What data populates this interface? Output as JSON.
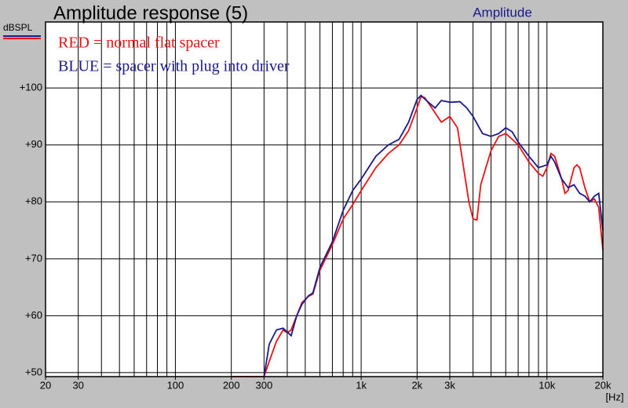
{
  "chart_data": {
    "type": "line",
    "title": "Amplitude response (5)",
    "subtitle": "Amplitude",
    "y_label": "dBSPL",
    "x_label": "[Hz]",
    "log_x": true,
    "grid": true,
    "xlim": [
      20,
      20000
    ],
    "ylim": [
      49.3,
      111.6
    ],
    "xticks": [
      20,
      30,
      100,
      200,
      300,
      {
        "value": 1000,
        "label": "1k"
      },
      {
        "value": 2000,
        "label": "2k"
      },
      {
        "value": 3000,
        "label": "3k"
      },
      {
        "value": 10000,
        "label": "10k"
      },
      {
        "value": 20000,
        "label": "20k"
      }
    ],
    "xgrid": [
      20,
      30,
      40,
      50,
      60,
      70,
      80,
      90,
      100,
      200,
      300,
      400,
      500,
      600,
      700,
      800,
      900,
      1000,
      2000,
      3000,
      4000,
      5000,
      6000,
      7000,
      8000,
      9000,
      10000,
      20000
    ],
    "yticks": [
      {
        "value": 50,
        "label": "+50"
      },
      {
        "value": 60,
        "label": "+60"
      },
      {
        "value": 70,
        "label": "+70"
      },
      {
        "value": 80,
        "label": "+80"
      },
      {
        "value": 90,
        "label": "+90"
      },
      {
        "value": 100,
        "label": "+100"
      }
    ],
    "series": [
      {
        "name": "RED = normal flat spacer",
        "color": "#ee1111",
        "x": [
          200,
          300,
          320,
          350,
          380,
          400,
          420,
          450,
          480,
          520,
          550,
          600,
          700,
          800,
          900,
          1000,
          1200,
          1400,
          1600,
          1800,
          2000,
          2100,
          2200,
          2400,
          2700,
          3000,
          3300,
          3600,
          3800,
          4000,
          4200,
          4400,
          5000,
          5500,
          6000,
          6500,
          7000,
          8000,
          9000,
          9500,
          10000,
          10500,
          11000,
          12000,
          12500,
          13000,
          14000,
          14500,
          15000,
          16000,
          17000,
          18000,
          19000,
          20000
        ],
        "values": [
          49.3,
          49.3,
          52,
          55.5,
          57.5,
          57,
          57.5,
          60,
          62.3,
          63.4,
          63.8,
          68,
          72.5,
          77,
          79.5,
          82,
          86,
          88.5,
          90,
          92.5,
          96.5,
          98.5,
          98.3,
          96.5,
          94,
          95,
          93,
          85,
          80,
          77,
          76.8,
          83,
          89,
          91.5,
          92,
          91,
          90,
          87,
          85,
          84.5,
          86,
          88.5,
          88,
          84,
          81.5,
          82,
          86,
          86.5,
          86,
          82.5,
          80,
          80.5,
          79,
          71.5
        ]
      },
      {
        "name": "BLUE = spacer with plug into driver",
        "color": "#1a1a8c",
        "x": [
          300,
          320,
          350,
          380,
          420,
          450,
          480,
          520,
          550,
          600,
          700,
          800,
          900,
          1000,
          1200,
          1400,
          1600,
          1800,
          2000,
          2100,
          2300,
          2500,
          2700,
          3000,
          3400,
          3700,
          4000,
          4500,
          5000,
          5500,
          6000,
          6500,
          7000,
          8000,
          9000,
          10000,
          10500,
          11000,
          12000,
          13000,
          14000,
          15000,
          16000,
          17000,
          18000,
          19000,
          20000
        ],
        "values": [
          49.3,
          55,
          57.5,
          57.8,
          56.5,
          60,
          62,
          63.5,
          64,
          68.5,
          73,
          78.5,
          82,
          84,
          88,
          90,
          91,
          94,
          98,
          98.7,
          97.5,
          96.5,
          97.8,
          97.5,
          97.6,
          96.5,
          95,
          92,
          91.5,
          92,
          93,
          92.3,
          90.5,
          88,
          86,
          86.5,
          88,
          87,
          84,
          82.5,
          83,
          81.5,
          81,
          80,
          81,
          81.5,
          75
        ]
      }
    ]
  }
}
